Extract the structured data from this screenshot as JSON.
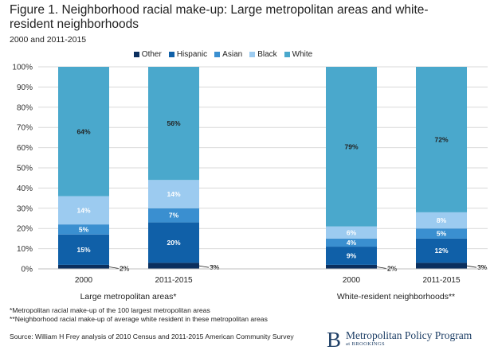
{
  "figure": {
    "title": "Figure 1. Neighborhood racial make-up: Large metropolitan areas and white-resident neighborhoods",
    "subtitle": "2000 and 2011-2015"
  },
  "chart_data": {
    "type": "bar",
    "stacked": true,
    "title": "Figure 1. Neighborhood racial make-up: Large metropolitan areas and white-resident neighborhoods",
    "subtitle": "2000 and 2011-2015",
    "ylabel": "",
    "ylim": [
      0,
      100
    ],
    "yticks": [
      "0%",
      "10%",
      "20%",
      "30%",
      "40%",
      "50%",
      "60%",
      "70%",
      "80%",
      "90%",
      "100%"
    ],
    "legend_position": "top",
    "series_names": [
      "Other",
      "Hispanic",
      "Asian",
      "Black",
      "White"
    ],
    "colors": {
      "Other": "#0b2f5e",
      "Hispanic": "#1060a8",
      "Asian": "#3a8fd0",
      "Black": "#9ccbf0",
      "White": "#4aa8cc"
    },
    "groups": [
      {
        "label": "Large metropolitan areas*",
        "bars": [
          {
            "category": "2000",
            "values": {
              "Other": 2,
              "Hispanic": 15,
              "Asian": 5,
              "Black": 14,
              "White": 64
            },
            "labels": {
              "Other": "2%",
              "Hispanic": "15%",
              "Asian": "5%",
              "Black": "14%",
              "White": "64%"
            }
          },
          {
            "category": "2011-2015",
            "values": {
              "Other": 3,
              "Hispanic": 20,
              "Asian": 7,
              "Black": 14,
              "White": 56
            },
            "labels": {
              "Other": "3%",
              "Hispanic": "20%",
              "Asian": "7%",
              "Black": "14%",
              "White": "56%"
            }
          }
        ]
      },
      {
        "label": "White-resident neighborhoods**",
        "bars": [
          {
            "category": "2000",
            "values": {
              "Other": 2,
              "Hispanic": 9,
              "Asian": 4,
              "Black": 6,
              "White": 79
            },
            "labels": {
              "Other": "2%",
              "Hispanic": "9%",
              "Asian": "4%",
              "Black": "6%",
              "White": "79%"
            }
          },
          {
            "category": "2011-2015",
            "values": {
              "Other": 3,
              "Hispanic": 12,
              "Asian": 5,
              "Black": 8,
              "White": 72
            },
            "labels": {
              "Other": "3%",
              "Hispanic": "12%",
              "Asian": "5%",
              "Black": "8%",
              "White": "72%"
            }
          }
        ]
      }
    ]
  },
  "notes": {
    "note1": "*Metropolitan racial make-up of the 100 largest metropolitan areas",
    "note2": "**Neighborhood racial make-up of average white resident in these metropolitan areas"
  },
  "source": "Source: William H  Frey analysis of 2010 Census and 2011-2015 American Community Survey",
  "brand": {
    "logo_letter": "B",
    "name": "Metropolitan Policy Program",
    "sub": "at BROOKINGS"
  }
}
